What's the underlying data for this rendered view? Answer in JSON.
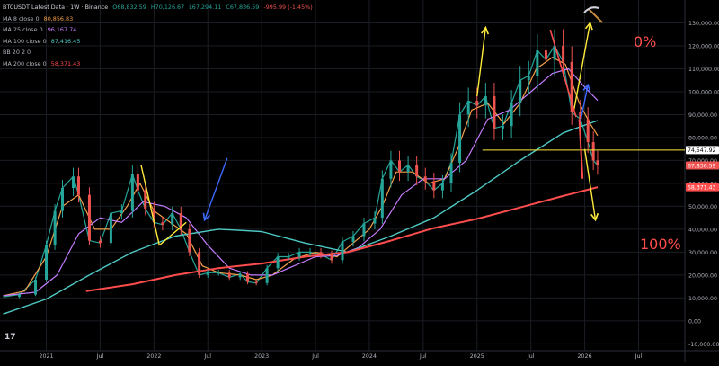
{
  "legend": {
    "symbol": "BTCUSDT Latest Data · 1W · Binance",
    "o": "O68,832.59",
    "h": "H70,126.67",
    "l": "L67,294.11",
    "c": "C67,836.59",
    "chg": "-995.99 (-1.45%)",
    "ma": [
      {
        "label": "MA 8 close 0",
        "value": "80,856.83",
        "color": "#f5a04a"
      },
      {
        "label": "MA 25 close 0",
        "value": "96,167.74",
        "color": "#c77dff"
      },
      {
        "label": "MA 100 close 0",
        "value": "87,416.45",
        "color": "#4ec9c4"
      },
      {
        "label": "BB 20 2 0",
        "value": "",
        "color": "#787b86"
      },
      {
        "label": "MA 200 close 0",
        "value": "58,371.43",
        "color": "#ff4d4d"
      }
    ]
  },
  "annotations": {
    "zero": "0%",
    "hundred": "100%"
  },
  "chart_data": {
    "type": "line",
    "title": "",
    "y_ticks": [
      "130,000.00",
      "120,000.00",
      "110,000.00",
      "100,000.00",
      "90,000.00",
      "80,000.00",
      "70,000.00",
      "60,000.00",
      "50,000.00",
      "40,000.00",
      "30,000.00",
      "20,000.00",
      "10,000.00",
      "0,00",
      "-10,000.00"
    ],
    "y_values": [
      130000,
      120000,
      110000,
      100000,
      90000,
      80000,
      70000,
      60000,
      50000,
      40000,
      30000,
      20000,
      10000,
      0,
      -10000
    ],
    "ylim": [
      -13000,
      140000
    ],
    "x_ticks": [
      "2021",
      "Jul",
      "2022",
      "Jul",
      "2023",
      "Jul",
      "2024",
      "Jul",
      "2025",
      "Jul",
      "2026",
      "Jul"
    ],
    "x_tick_values": [
      2021.0,
      2021.5,
      2022.0,
      2022.5,
      2023.0,
      2023.5,
      2024.0,
      2024.5,
      2025.0,
      2025.5,
      2026.0,
      2026.5
    ],
    "xlim": [
      2020.57,
      2026.93
    ],
    "price_labels": [
      {
        "text": "74,547.92",
        "value": 74547.92,
        "bg": "#ffffff",
        "fg": "#000000"
      },
      {
        "text": "67,836.59",
        "value": 67836.59,
        "bg": "#ef5350",
        "fg": "#ffffff"
      },
      {
        "text": "58,371.43",
        "value": 58371.43,
        "bg": "#ff4d4d",
        "fg": "#ffffff"
      }
    ],
    "series": [
      {
        "key": "price",
        "color": "#26a69a",
        "x": [
          2020.6,
          2020.75,
          2020.9,
          2021.0,
          2021.08,
          2021.15,
          2021.25,
          2021.3,
          2021.4,
          2021.5,
          2021.6,
          2021.7,
          2021.8,
          2021.85,
          2021.92,
          2022.0,
          2022.08,
          2022.17,
          2022.25,
          2022.33,
          2022.42,
          2022.5,
          2022.6,
          2022.7,
          2022.8,
          2022.87,
          2022.95,
          2023.05,
          2023.15,
          2023.25,
          2023.35,
          2023.45,
          2023.55,
          2023.65,
          2023.75,
          2023.85,
          2023.95,
          2024.05,
          2024.12,
          2024.2,
          2024.28,
          2024.36,
          2024.44,
          2024.52,
          2024.6,
          2024.68,
          2024.76,
          2024.84,
          2024.92,
          2025.0,
          2025.08,
          2025.16,
          2025.24,
          2025.32,
          2025.4,
          2025.48,
          2025.56,
          2025.64,
          2025.72,
          2025.8,
          2025.88,
          2025.96,
          2026.03,
          2026.08,
          2026.12
        ],
        "y": [
          10500,
          11500,
          18000,
          33000,
          48000,
          58000,
          63000,
          55000,
          35000,
          34000,
          47000,
          48000,
          64000,
          57000,
          49000,
          43000,
          42000,
          47000,
          40000,
          30000,
          20000,
          21000,
          21000,
          19000,
          20500,
          17000,
          16500,
          23000,
          28000,
          28000,
          30000,
          30000,
          29000,
          26500,
          34500,
          37000,
          42500,
          45000,
          62000,
          70000,
          65000,
          68000,
          63000,
          61000,
          57000,
          60000,
          69000,
          90000,
          96000,
          94000,
          98000,
          84000,
          85000,
          95000,
          105000,
          107000,
          118000,
          114000,
          120000,
          113000,
          91000,
          88000,
          78000,
          70000,
          67800
        ]
      },
      {
        "key": "ma8",
        "color": "#f5a04a",
        "x": [
          2020.6,
          2020.8,
          2021.0,
          2021.15,
          2021.3,
          2021.45,
          2021.6,
          2021.75,
          2021.87,
          2022.0,
          2022.15,
          2022.3,
          2022.45,
          2022.6,
          2022.8,
          2022.95,
          2023.1,
          2023.3,
          2023.5,
          2023.7,
          2023.85,
          2024.0,
          2024.12,
          2024.25,
          2024.4,
          2024.55,
          2024.7,
          2024.82,
          2024.95,
          2025.1,
          2025.25,
          2025.4,
          2025.55,
          2025.7,
          2025.82,
          2025.95,
          2026.05,
          2026.12
        ],
        "y": [
          11000,
          13000,
          28000,
          50000,
          55000,
          40000,
          40000,
          50000,
          60000,
          48000,
          43000,
          38000,
          24000,
          21000,
          20000,
          18000,
          20000,
          27000,
          30000,
          28000,
          34000,
          40000,
          50000,
          65000,
          65000,
          60000,
          62000,
          75000,
          92000,
          95000,
          86000,
          95000,
          110000,
          115000,
          112000,
          95000,
          86000,
          80856
        ]
      },
      {
        "key": "ma25",
        "color": "#c77dff",
        "x": [
          2020.6,
          2020.9,
          2021.1,
          2021.3,
          2021.5,
          2021.7,
          2021.9,
          2022.1,
          2022.3,
          2022.5,
          2022.7,
          2022.9,
          2023.1,
          2023.3,
          2023.5,
          2023.7,
          2023.9,
          2024.1,
          2024.3,
          2024.5,
          2024.7,
          2024.9,
          2025.1,
          2025.3,
          2025.5,
          2025.7,
          2025.85,
          2026.0,
          2026.12
        ],
        "y": [
          11000,
          12500,
          20000,
          38000,
          45000,
          43000,
          52000,
          50000,
          45000,
          33000,
          23000,
          20000,
          20000,
          24000,
          28000,
          28500,
          32000,
          40000,
          55000,
          62000,
          62000,
          70000,
          88000,
          92000,
          100000,
          108000,
          110000,
          102000,
          96167
        ]
      },
      {
        "key": "ma100",
        "color": "#4ec9c4",
        "x": [
          2020.6,
          2021.0,
          2021.4,
          2021.8,
          2022.2,
          2022.6,
          2023.0,
          2023.4,
          2023.8,
          2024.2,
          2024.6,
          2025.0,
          2025.4,
          2025.8,
          2026.12
        ],
        "y": [
          3000,
          9500,
          20000,
          30000,
          37000,
          40000,
          39000,
          34000,
          30000,
          37000,
          45000,
          57000,
          70000,
          82000,
          87416
        ]
      },
      {
        "key": "ma200",
        "color": "#ff4d4d",
        "x": [
          2021.37,
          2021.8,
          2022.2,
          2022.6,
          2023.0,
          2023.4,
          2023.8,
          2024.2,
          2024.6,
          2025.0,
          2025.4,
          2025.8,
          2026.12
        ],
        "y": [
          13000,
          16000,
          20000,
          23000,
          25000,
          28000,
          30000,
          35000,
          40500,
          44500,
          49500,
          54500,
          58371
        ]
      }
    ]
  }
}
